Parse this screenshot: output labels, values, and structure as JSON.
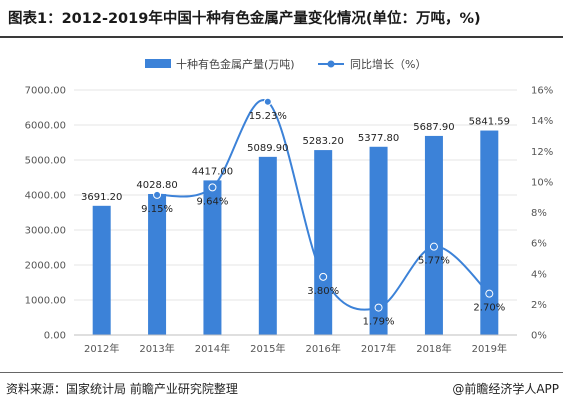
{
  "header": {
    "title": "图表1：2012-2019年中国十种有色金属产量变化情况(单位：万吨，%)"
  },
  "footer": {
    "source": "资料来源：国家统计局 前瞻产业研究院整理",
    "brand": "@前瞻经济学人APP"
  },
  "colors": {
    "bar": "#3c82d8",
    "line": "#3c82d8",
    "grid": "#e6e6e6"
  },
  "chart_data": {
    "type": "bar",
    "categories": [
      "2012年",
      "2013年",
      "2014年",
      "2015年",
      "2016年",
      "2017年",
      "2018年",
      "2019年"
    ],
    "series": [
      {
        "name": "十种有色金属产量(万吨)",
        "type": "bar",
        "axis": "left",
        "values": [
          3691.2,
          4028.8,
          4417.0,
          5089.9,
          5283.2,
          5377.8,
          5687.9,
          5841.59
        ],
        "labels": [
          "3691.20",
          "4028.80",
          "4417.00",
          "5089.90",
          "5283.20",
          "5377.80",
          "5687.90",
          "5841.59"
        ]
      },
      {
        "name": "同比增长（%）",
        "type": "line",
        "axis": "right",
        "values": [
          null,
          9.15,
          9.64,
          15.23,
          3.8,
          1.79,
          5.77,
          2.7
        ],
        "labels": [
          "",
          "9.15%",
          "9.64%",
          "15.23%",
          "3.80%",
          "1.79%",
          "5.77%",
          "2.70%"
        ]
      }
    ],
    "y_left": {
      "range": [
        0,
        7000
      ],
      "ticks": [
        0,
        1000,
        2000,
        3000,
        4000,
        5000,
        6000,
        7000
      ],
      "tick_labels": [
        "0.00",
        "1000.00",
        "2000.00",
        "3000.00",
        "4000.00",
        "5000.00",
        "6000.00",
        "7000.00"
      ]
    },
    "y_right": {
      "range": [
        0,
        16
      ],
      "ticks": [
        0,
        2,
        4,
        6,
        8,
        10,
        12,
        14,
        16
      ],
      "tick_labels": [
        "0%",
        "2%",
        "4%",
        "6%",
        "8%",
        "10%",
        "12%",
        "14%",
        "16%"
      ]
    },
    "grid": true,
    "legend_position": "top-center"
  }
}
